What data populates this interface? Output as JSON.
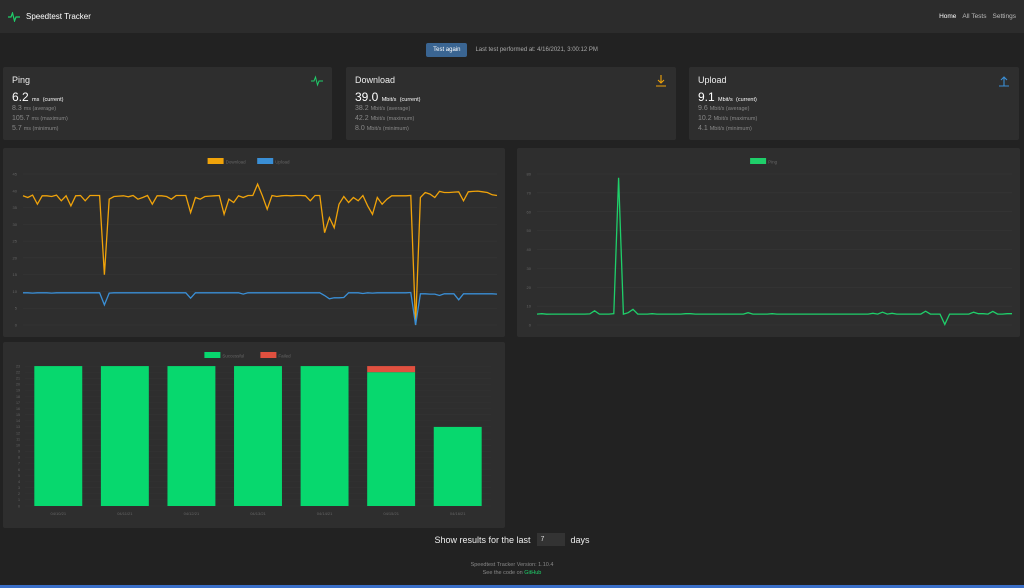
{
  "nav": {
    "title": "Speedtest Tracker",
    "links": [
      "Home",
      "All Tests",
      "Settings"
    ]
  },
  "test": {
    "button": "Test again",
    "last": "Last test performed at: 4/16/2021, 3:00:12 PM"
  },
  "cards": [
    {
      "title": "Ping",
      "icon": "pulse-icon",
      "color": "#1fcf6a",
      "current": "6.2",
      "unit": "ms",
      "rows": [
        [
          "8.3",
          "ms (average)"
        ],
        [
          "105.7",
          "ms (maximum)"
        ],
        [
          "5.7",
          "ms (minimum)"
        ]
      ]
    },
    {
      "title": "Download",
      "icon": "download-icon",
      "color": "#f0a30a",
      "current": "39.0",
      "unit": "Mbit/s",
      "rows": [
        [
          "38.2",
          "Mbit/s (average)"
        ],
        [
          "42.2",
          "Mbit/s (maximum)"
        ],
        [
          "8.0",
          "Mbit/s (minimum)"
        ]
      ]
    },
    {
      "title": "Upload",
      "icon": "upload-icon",
      "color": "#3a8fd6",
      "current": "9.1",
      "unit": "Mbit/s",
      "rows": [
        [
          "9.6",
          "Mbit/s (average)"
        ],
        [
          "10.2",
          "Mbit/s (maximum)"
        ],
        [
          "4.1",
          "Mbit/s (minimum)"
        ]
      ]
    }
  ],
  "current_suffix": "(current)",
  "chart_data": [
    {
      "type": "line",
      "title": "",
      "ylim": [
        0,
        45
      ],
      "yticks": [
        0,
        5,
        10,
        15,
        20,
        25,
        30,
        35,
        40,
        45
      ],
      "series": [
        {
          "name": "Download",
          "color": "#f0a30a",
          "values": [
            38.5,
            38,
            38.7,
            36,
            38.5,
            38.5,
            38.3,
            38.7,
            37,
            38.5,
            35.5,
            38.5,
            38.6,
            37,
            38.6,
            38.6,
            38.6,
            15,
            37.5,
            38.3,
            38.4,
            38.5,
            38.2,
            38.6,
            37.5,
            38,
            38.6,
            36,
            38.5,
            38.5,
            38.3,
            37.5,
            38.6,
            38.6,
            38.6,
            33.5,
            38,
            37.5,
            38.3,
            38.4,
            38.5,
            38.6,
            33,
            37.5,
            36.5,
            38.5,
            38,
            38.6,
            38.6,
            42,
            38.5,
            34.5,
            38.6,
            38.3,
            38.5,
            38.6,
            38.5,
            38.6,
            38.6,
            38.5,
            37,
            38.6,
            38.6,
            27.5,
            32,
            29,
            36,
            38.3,
            36.5,
            38,
            37,
            38.6,
            35.5,
            33,
            38,
            36,
            37.5,
            38.5,
            38.5,
            38.5,
            38.5,
            38.6,
            0,
            38,
            39.5,
            39,
            38,
            39.8,
            39.5,
            39.5,
            39.6,
            39.7,
            37,
            39.7,
            39.8,
            39.9,
            39.7,
            39.5,
            38.8,
            38.6
          ]
        },
        {
          "name": "Upload",
          "color": "#3a8fd6",
          "values": [
            9.6,
            9.6,
            9.5,
            9.6,
            9.6,
            9.6,
            9.5,
            9.6,
            9.6,
            9.6,
            9.6,
            9.6,
            9.6,
            9.6,
            9.6,
            9.6,
            9.6,
            6,
            9.5,
            9.6,
            9.6,
            9.6,
            9.6,
            9.6,
            9.6,
            9.6,
            9.6,
            9.6,
            9.6,
            9.6,
            9.6,
            9.6,
            9.6,
            9.6,
            9.6,
            8,
            9.6,
            9.6,
            9.6,
            9.6,
            9.6,
            9.6,
            9.6,
            9.6,
            9.6,
            9.6,
            9.2,
            9.6,
            9.6,
            9.6,
            9.6,
            9.6,
            9.6,
            9.6,
            9.6,
            9.6,
            9.6,
            9.6,
            9.6,
            9.6,
            9.6,
            9.6,
            9.6,
            8.8,
            7.8,
            8.1,
            8.1,
            8.2,
            9.6,
            9.6,
            9.6,
            9.4,
            9.6,
            9.5,
            9.6,
            9.6,
            9.6,
            9.6,
            9.6,
            9.6,
            9.6,
            9.7,
            0,
            9.3,
            9.3,
            9.2,
            9.2,
            8.8,
            9.3,
            9.3,
            9.3,
            7.5,
            9.3,
            9.3,
            9.3,
            9.3,
            9.3,
            9.3,
            9.3,
            9.2
          ]
        }
      ]
    },
    {
      "type": "line",
      "title": "",
      "ylim": [
        0,
        80
      ],
      "yticks": [
        0,
        10,
        20,
        30,
        40,
        50,
        60,
        70,
        80
      ],
      "series": [
        {
          "name": "Ping",
          "color": "#1fcf6a",
          "values": [
            5.8,
            6,
            5.7,
            5.8,
            5.8,
            5.8,
            5.8,
            5.8,
            5.8,
            5.8,
            5.8,
            5.9,
            7.5,
            5.8,
            5.8,
            5.8,
            6,
            78,
            5.8,
            6.5,
            8.3,
            5.8,
            5.8,
            5.8,
            6,
            5.8,
            5.8,
            5.8,
            5.8,
            5.8,
            5.8,
            6,
            6,
            5.8,
            5.8,
            5.8,
            5.8,
            5.8,
            5.8,
            5.8,
            5.8,
            5.8,
            5.8,
            5.8,
            6.5,
            5.8,
            5.8,
            5.8,
            5.8,
            6,
            5.8,
            5.8,
            5.8,
            5.8,
            5.8,
            5.8,
            5.8,
            5.8,
            5.8,
            5.8,
            5.8,
            5.8,
            5.8,
            5.8,
            5.8,
            5.8,
            5.8,
            5.8,
            5.8,
            5.8,
            6.2,
            5.8,
            6.8,
            5.8,
            6.2,
            5.8,
            5.8,
            5.8,
            5.8,
            5.8,
            5.8,
            7.3,
            5.8,
            5.8,
            5.8,
            0.3,
            5.8,
            5.8,
            5.8,
            5.8,
            5.8,
            6.8,
            6,
            6,
            5.8,
            7.2,
            5.8,
            5.8,
            6,
            6
          ]
        }
      ]
    },
    {
      "type": "bar",
      "stacked": true,
      "title": "",
      "ylim": [
        0,
        23
      ],
      "yticks": [
        0,
        1,
        2,
        3,
        4,
        5,
        6,
        7,
        8,
        9,
        10,
        11,
        12,
        13,
        14,
        15,
        16,
        17,
        18,
        19,
        20,
        21,
        22,
        23
      ],
      "categories": [
        "04/10/21",
        "04/11/21",
        "04/12/21",
        "04/13/21",
        "04/14/21",
        "04/15/21",
        "04/16/21"
      ],
      "series": [
        {
          "name": "Successful",
          "color": "#07d86e",
          "values": [
            23,
            23,
            23,
            23,
            23,
            22,
            13
          ]
        },
        {
          "name": "Failed",
          "color": "#e0503f",
          "values": [
            0,
            0,
            0,
            0,
            0,
            1,
            0
          ]
        }
      ]
    }
  ],
  "filter": {
    "label": "Show results for the last",
    "value": "7",
    "suffix": "days"
  },
  "footer": {
    "version": "Speedtest Tracker Version: 1.10.4",
    "code_prefix": "See the code on",
    "code_link": "GitHub"
  }
}
